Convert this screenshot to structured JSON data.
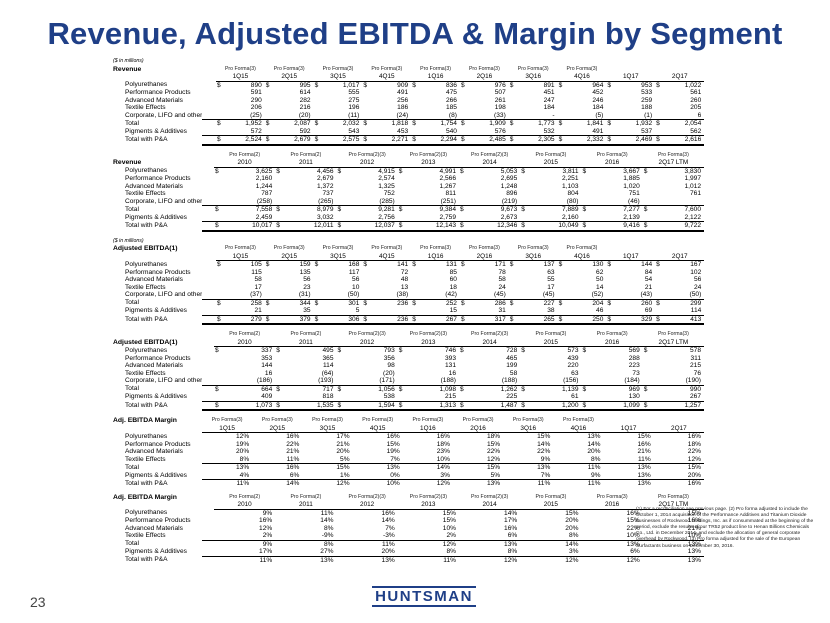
{
  "title": "Revenue, Adjusted EBITDA & Margin by Segment",
  "page_number": "23",
  "logo_text": "HUNTSMAN",
  "footnotes": "(1) For a reconciliation see previous page. (2) Pro forma adjusted to include the October 1, 2014 acquisition of the Performance Additives and Titanium Dioxide businesses of Rockwood Holdings, Inc. as if consummated at the beginning of the period, exclude the results of our TR52 product line to Henan Billions Chemicals Co., Ltd. in December 2014, and exclude the allocation of general corporate overhead by Rockwood. (3) Pro forma adjusted for the sale of the European Surfactants business on December 30, 2016.",
  "tables": [
    {
      "id": "rev-q",
      "note": "($ in millions)",
      "title": "Revenue",
      "labelpos": "row2",
      "lead": 14,
      "pf": [
        "Pro Forma(3)",
        "Pro Forma(3)",
        "Pro Forma(3)",
        "Pro Forma(3)",
        "Pro Forma(3)",
        "Pro Forma(3)",
        "Pro Forma(3)",
        "Pro Forma(3)",
        "",
        ""
      ],
      "periods": [
        "1Q15",
        "2Q15",
        "3Q15",
        "4Q15",
        "1Q16",
        "2Q16",
        "3Q16",
        "4Q16",
        "1Q17",
        "2Q17"
      ],
      "rows": [
        {
          "label": "Polyurethanes",
          "cls": "",
          "sym": true,
          "v": [
            "890",
            "995",
            "1,017",
            "909",
            "836",
            "976",
            "891",
            "964",
            "953",
            "1,022"
          ]
        },
        {
          "label": "Performance Products",
          "cls": "",
          "sym": false,
          "v": [
            "591",
            "614",
            "555",
            "491",
            "475",
            "507",
            "451",
            "452",
            "533",
            "561"
          ]
        },
        {
          "label": "Advanced Materials",
          "cls": "",
          "sym": false,
          "v": [
            "290",
            "282",
            "275",
            "256",
            "266",
            "261",
            "247",
            "246",
            "259",
            "260"
          ]
        },
        {
          "label": "Textile Effects",
          "cls": "",
          "sym": false,
          "v": [
            "206",
            "216",
            "196",
            "186",
            "185",
            "198",
            "184",
            "184",
            "188",
            "205"
          ]
        },
        {
          "label": "Corporate, LIFO and other",
          "cls": "",
          "sym": false,
          "v": [
            "(25)",
            "(20)",
            "(11)",
            "(24)",
            "(8)",
            "(33)",
            "-",
            "(5)",
            "(1)",
            "6"
          ]
        },
        {
          "label": "Total",
          "cls": "total",
          "sym": true,
          "v": [
            "1,952",
            "2,087",
            "2,032",
            "1,818",
            "1,754",
            "1,909",
            "1,773",
            "1,841",
            "1,932",
            "2,054"
          ]
        },
        {
          "label": "Pigments & Additives",
          "cls": "",
          "sym": false,
          "v": [
            "572",
            "592",
            "543",
            "453",
            "540",
            "576",
            "532",
            "491",
            "537",
            "562"
          ]
        },
        {
          "label": "Total with P&A",
          "cls": "total grand",
          "sym": true,
          "v": [
            "2,524",
            "2,679",
            "2,575",
            "2,271",
            "2,294",
            "2,485",
            "2,305",
            "2,332",
            "2,469",
            "2,616"
          ]
        }
      ]
    },
    {
      "id": "rev-a",
      "note": "",
      "title": "Revenue",
      "labelpos": "row3",
      "lead": 12,
      "pf": [
        "Pro Forma(2)",
        "Pro Forma(2)",
        "Pro Forma(2)(3)",
        "Pro Forma(2)(3)",
        "Pro Forma(2)(3)",
        "Pro Forma(3)",
        "Pro Forma(3)",
        "Pro Forma(3)"
      ],
      "periods": [
        "2010",
        "2011",
        "2012",
        "2013",
        "2014",
        "2015",
        "2016",
        "2Q17 LTM"
      ],
      "rows": [
        {
          "label": "Polyurethanes",
          "cls": "",
          "sym": true,
          "v": [
            "3,625",
            "4,456",
            "4,915",
            "4,991",
            "5,053",
            "3,811",
            "3,667",
            "3,830"
          ]
        },
        {
          "label": "Performance Products",
          "cls": "",
          "sym": false,
          "v": [
            "2,160",
            "2,679",
            "2,574",
            "2,566",
            "2,695",
            "2,251",
            "1,885",
            "1,997"
          ]
        },
        {
          "label": "Advanced Materials",
          "cls": "",
          "sym": false,
          "v": [
            "1,244",
            "1,372",
            "1,325",
            "1,267",
            "1,248",
            "1,103",
            "1,020",
            "1,012"
          ]
        },
        {
          "label": "Textile Effects",
          "cls": "",
          "sym": false,
          "v": [
            "787",
            "737",
            "752",
            "811",
            "896",
            "804",
            "751",
            "761"
          ]
        },
        {
          "label": "Corporate, LIFO and other",
          "cls": "",
          "sym": false,
          "v": [
            "(258)",
            "(265)",
            "(285)",
            "(251)",
            "(219)",
            "(80)",
            "(46)",
            ""
          ]
        },
        {
          "label": "Total",
          "cls": "total",
          "sym": true,
          "v": [
            "7,558",
            "8,979",
            "9,281",
            "9,384",
            "9,673",
            "7,889",
            "7,277",
            "7,600"
          ]
        },
        {
          "label": "Pigments & Additives",
          "cls": "",
          "sym": false,
          "v": [
            "2,459",
            "3,032",
            "2,756",
            "2,759",
            "2,673",
            "2,160",
            "2,139",
            "2,122"
          ]
        },
        {
          "label": "Total with P&A",
          "cls": "total grand",
          "sym": true,
          "v": [
            "10,017",
            "12,011",
            "12,037",
            "12,143",
            "12,346",
            "10,049",
            "9,416",
            "9,722"
          ]
        }
      ]
    },
    {
      "id": "ebitda-q",
      "note": "($ in millions)",
      "title": "Adjusted EBITDA(1)",
      "labelpos": "row2",
      "lead": 14,
      "pf": [
        "Pro Forma(3)",
        "Pro Forma(3)",
        "Pro Forma(3)",
        "Pro Forma(3)",
        "Pro Forma(3)",
        "Pro Forma(3)",
        "Pro Forma(3)",
        "Pro Forma(3)",
        "",
        ""
      ],
      "periods": [
        "1Q15",
        "2Q15",
        "3Q15",
        "4Q15",
        "1Q16",
        "2Q16",
        "3Q16",
        "4Q16",
        "1Q17",
        "2Q17"
      ],
      "rows": [
        {
          "label": "Polyurethanes",
          "cls": "",
          "sym": true,
          "v": [
            "105",
            "159",
            "168",
            "141",
            "131",
            "171",
            "137",
            "130",
            "144",
            "167"
          ]
        },
        {
          "label": "Performance Products",
          "cls": "",
          "sym": false,
          "v": [
            "115",
            "135",
            "117",
            "72",
            "85",
            "78",
            "63",
            "62",
            "84",
            "102"
          ]
        },
        {
          "label": "Advanced Materials",
          "cls": "",
          "sym": false,
          "v": [
            "58",
            "56",
            "56",
            "48",
            "60",
            "58",
            "55",
            "50",
            "54",
            "56"
          ]
        },
        {
          "label": "Textile Effects",
          "cls": "",
          "sym": false,
          "v": [
            "17",
            "23",
            "10",
            "13",
            "18",
            "24",
            "17",
            "14",
            "21",
            "24"
          ]
        },
        {
          "label": "Corporate, LIFO and other",
          "cls": "",
          "sym": false,
          "v": [
            "(37)",
            "(31)",
            "(50)",
            "(38)",
            "(42)",
            "(45)",
            "(45)",
            "(52)",
            "(43)",
            "(50)"
          ]
        },
        {
          "label": "Total",
          "cls": "total",
          "sym": true,
          "v": [
            "258",
            "344",
            "301",
            "236",
            "252",
            "286",
            "227",
            "204",
            "260",
            "299"
          ]
        },
        {
          "label": "Pigments & Additives",
          "cls": "",
          "sym": false,
          "v": [
            "21",
            "35",
            "5",
            "",
            "15",
            "31",
            "38",
            "46",
            "69",
            "114"
          ]
        },
        {
          "label": "Total with P&A",
          "cls": "total grand",
          "sym": true,
          "v": [
            "279",
            "379",
            "306",
            "236",
            "267",
            "317",
            "265",
            "250",
            "329",
            "413"
          ]
        }
      ]
    },
    {
      "id": "ebitda-a",
      "note": "",
      "title": "Adjusted EBITDA(1)",
      "labelpos": "row3",
      "lead": 12,
      "pf": [
        "Pro Forma(2)",
        "Pro Forma(2)",
        "Pro Forma(2)(3)",
        "Pro Forma(2)(3)",
        "Pro Forma(2)(3)",
        "Pro Forma(3)",
        "Pro Forma(3)",
        "Pro Forma(3)"
      ],
      "periods": [
        "2010",
        "2011",
        "2012",
        "2013",
        "2014",
        "2015",
        "2016",
        "2Q17 LTM"
      ],
      "rows": [
        {
          "label": "Polyurethanes",
          "cls": "",
          "sym": true,
          "v": [
            "337",
            "495",
            "793",
            "746",
            "728",
            "573",
            "569",
            "578"
          ]
        },
        {
          "label": "Performance Products",
          "cls": "",
          "sym": false,
          "v": [
            "353",
            "365",
            "356",
            "393",
            "465",
            "439",
            "288",
            "311"
          ]
        },
        {
          "label": "Advanced Materials",
          "cls": "",
          "sym": false,
          "v": [
            "144",
            "114",
            "98",
            "131",
            "199",
            "220",
            "223",
            "215"
          ]
        },
        {
          "label": "Textile Effects",
          "cls": "",
          "sym": false,
          "v": [
            "16",
            "(64)",
            "(20)",
            "16",
            "58",
            "63",
            "73",
            "76"
          ]
        },
        {
          "label": "Corporate, LIFO and other",
          "cls": "",
          "sym": false,
          "v": [
            "(186)",
            "(193)",
            "(171)",
            "(188)",
            "(188)",
            "(156)",
            "(184)",
            "(190)"
          ]
        },
        {
          "label": "Total",
          "cls": "total",
          "sym": true,
          "v": [
            "664",
            "717",
            "1,056",
            "1,098",
            "1,262",
            "1,139",
            "969",
            "990"
          ]
        },
        {
          "label": "Pigments & Additives",
          "cls": "",
          "sym": false,
          "v": [
            "409",
            "818",
            "538",
            "215",
            "225",
            "61",
            "130",
            "267"
          ]
        },
        {
          "label": "Total with P&A",
          "cls": "total grand",
          "sym": true,
          "v": [
            "1,073",
            "1,535",
            "1,594",
            "1,313",
            "1,487",
            "1,200",
            "1,099",
            "1,257"
          ]
        }
      ]
    },
    {
      "id": "margin-q",
      "note": "",
      "title": "Adj. EBITDA Margin",
      "labelpos": "row2",
      "lead": 0,
      "pf": [
        "Pro Forma(3)",
        "Pro Forma(3)",
        "Pro Forma(3)",
        "Pro Forma(3)",
        "Pro Forma(3)",
        "Pro Forma(3)",
        "Pro Forma(3)",
        "Pro Forma(3)",
        "",
        ""
      ],
      "periods": [
        "1Q15",
        "2Q15",
        "3Q15",
        "4Q15",
        "1Q16",
        "2Q16",
        "3Q16",
        "4Q16",
        "1Q17",
        "2Q17"
      ],
      "rows": [
        {
          "label": "Polyurethanes",
          "cls": "",
          "sym": false,
          "v": [
            "12%",
            "16%",
            "17%",
            "16%",
            "16%",
            "18%",
            "15%",
            "13%",
            "15%",
            "16%"
          ]
        },
        {
          "label": "Performance Products",
          "cls": "",
          "sym": false,
          "v": [
            "19%",
            "22%",
            "21%",
            "15%",
            "18%",
            "15%",
            "14%",
            "14%",
            "16%",
            "18%"
          ]
        },
        {
          "label": "Advanced Materials",
          "cls": "",
          "sym": false,
          "v": [
            "20%",
            "21%",
            "20%",
            "19%",
            "23%",
            "22%",
            "22%",
            "20%",
            "21%",
            "22%"
          ]
        },
        {
          "label": "Textile Effects",
          "cls": "",
          "sym": false,
          "v": [
            "8%",
            "11%",
            "5%",
            "7%",
            "10%",
            "12%",
            "9%",
            "8%",
            "11%",
            "12%"
          ]
        },
        {
          "label": "Total",
          "cls": "total",
          "sym": false,
          "v": [
            "13%",
            "16%",
            "15%",
            "13%",
            "14%",
            "15%",
            "13%",
            "11%",
            "13%",
            "15%"
          ]
        },
        {
          "label": "Pigments & Additives",
          "cls": "",
          "sym": false,
          "v": [
            "4%",
            "6%",
            "1%",
            "0%",
            "3%",
            "5%",
            "7%",
            "9%",
            "13%",
            "20%"
          ]
        },
        {
          "label": "Total with P&A",
          "cls": "total",
          "sym": false,
          "v": [
            "11%",
            "14%",
            "12%",
            "10%",
            "12%",
            "13%",
            "11%",
            "11%",
            "13%",
            "16%"
          ]
        }
      ]
    },
    {
      "id": "margin-a",
      "note": "",
      "title": "Adj. EBITDA Margin",
      "labelpos": "row2",
      "lead": 12,
      "pf": [
        "Pro Forma(2)",
        "Pro Forma(2)",
        "Pro Forma(2)(3)",
        "Pro Forma(2)(3)",
        "Pro Forma(2)(3)",
        "Pro Forma(3)",
        "Pro Forma(3)",
        "Pro Forma(3)"
      ],
      "periods": [
        "2010",
        "2011",
        "2012",
        "2013",
        "2014",
        "2015",
        "2016",
        "2Q17 LTM"
      ],
      "rows": [
        {
          "label": "Polyurethanes",
          "cls": "",
          "sym": false,
          "v": [
            "9%",
            "11%",
            "16%",
            "15%",
            "14%",
            "15%",
            "16%",
            "15%"
          ]
        },
        {
          "label": "Performance Products",
          "cls": "",
          "sym": false,
          "v": [
            "16%",
            "14%",
            "14%",
            "15%",
            "17%",
            "20%",
            "15%",
            "16%"
          ]
        },
        {
          "label": "Advanced Materials",
          "cls": "",
          "sym": false,
          "v": [
            "12%",
            "8%",
            "7%",
            "10%",
            "16%",
            "20%",
            "22%",
            "21%"
          ]
        },
        {
          "label": "Textile Effects",
          "cls": "",
          "sym": false,
          "v": [
            "2%",
            "-9%",
            "-3%",
            "2%",
            "6%",
            "8%",
            "10%",
            "10%"
          ]
        },
        {
          "label": "Total",
          "cls": "total",
          "sym": false,
          "v": [
            "9%",
            "8%",
            "11%",
            "12%",
            "13%",
            "14%",
            "13%",
            "13%"
          ]
        },
        {
          "label": "Pigments & Additives",
          "cls": "",
          "sym": false,
          "v": [
            "17%",
            "27%",
            "20%",
            "8%",
            "8%",
            "3%",
            "6%",
            "13%"
          ]
        },
        {
          "label": "Total with P&A",
          "cls": "total",
          "sym": false,
          "v": [
            "11%",
            "13%",
            "13%",
            "11%",
            "12%",
            "12%",
            "12%",
            "13%"
          ]
        }
      ]
    }
  ]
}
